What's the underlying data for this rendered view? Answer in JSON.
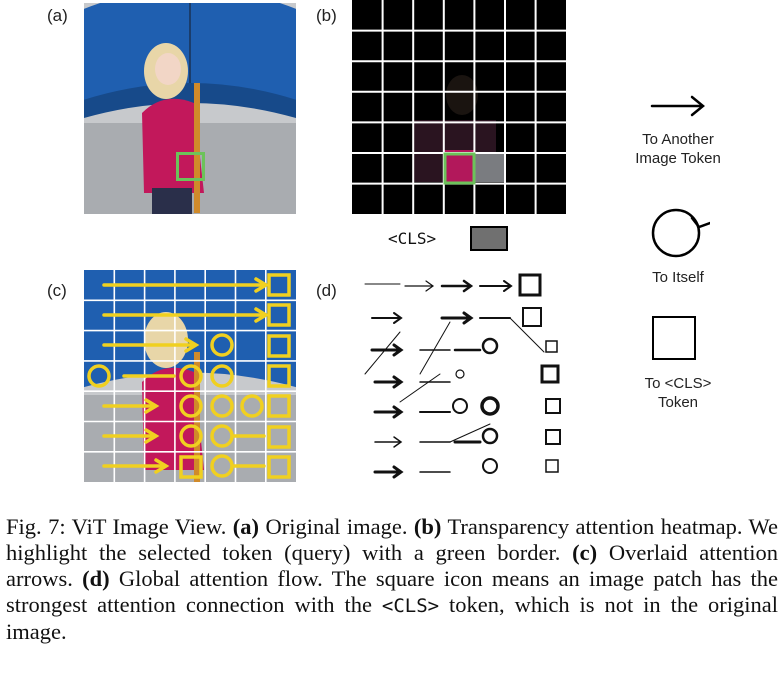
{
  "panels": {
    "a_label": "(a)",
    "b_label": "(b)",
    "c_label": "(c)",
    "d_label": "(d)",
    "cls_label": "<CLS>"
  },
  "legend": {
    "another": "To Another Image Token",
    "another_l1": "To Another",
    "another_l2": "Image Token",
    "itself": "To Itself",
    "cls_l1": "To <CLS>",
    "cls_l2": "Token"
  },
  "caption": {
    "fig": "Fig. 7: ViT Image View.",
    "a": "(a)",
    "a_text": "Original image.",
    "b": "(b)",
    "b_text": "Transparency attention heatmap. We highlight the selected token (query) with a green border.",
    "c": "(c)",
    "c_text": "Overlaid attention arrows.",
    "d": "(d)",
    "d_text": "Global attention flow. The square icon means an image patch has the strongest attention connection with the",
    "cls": "<CLS>",
    "end": "token, which is not in the original image."
  },
  "colors": {
    "umbrella": "#1f5fb0",
    "jacket": "#c2185b",
    "highlight": "#4caf50",
    "arrow_yellow": "#f0d020",
    "grid_dark": "#000000"
  }
}
